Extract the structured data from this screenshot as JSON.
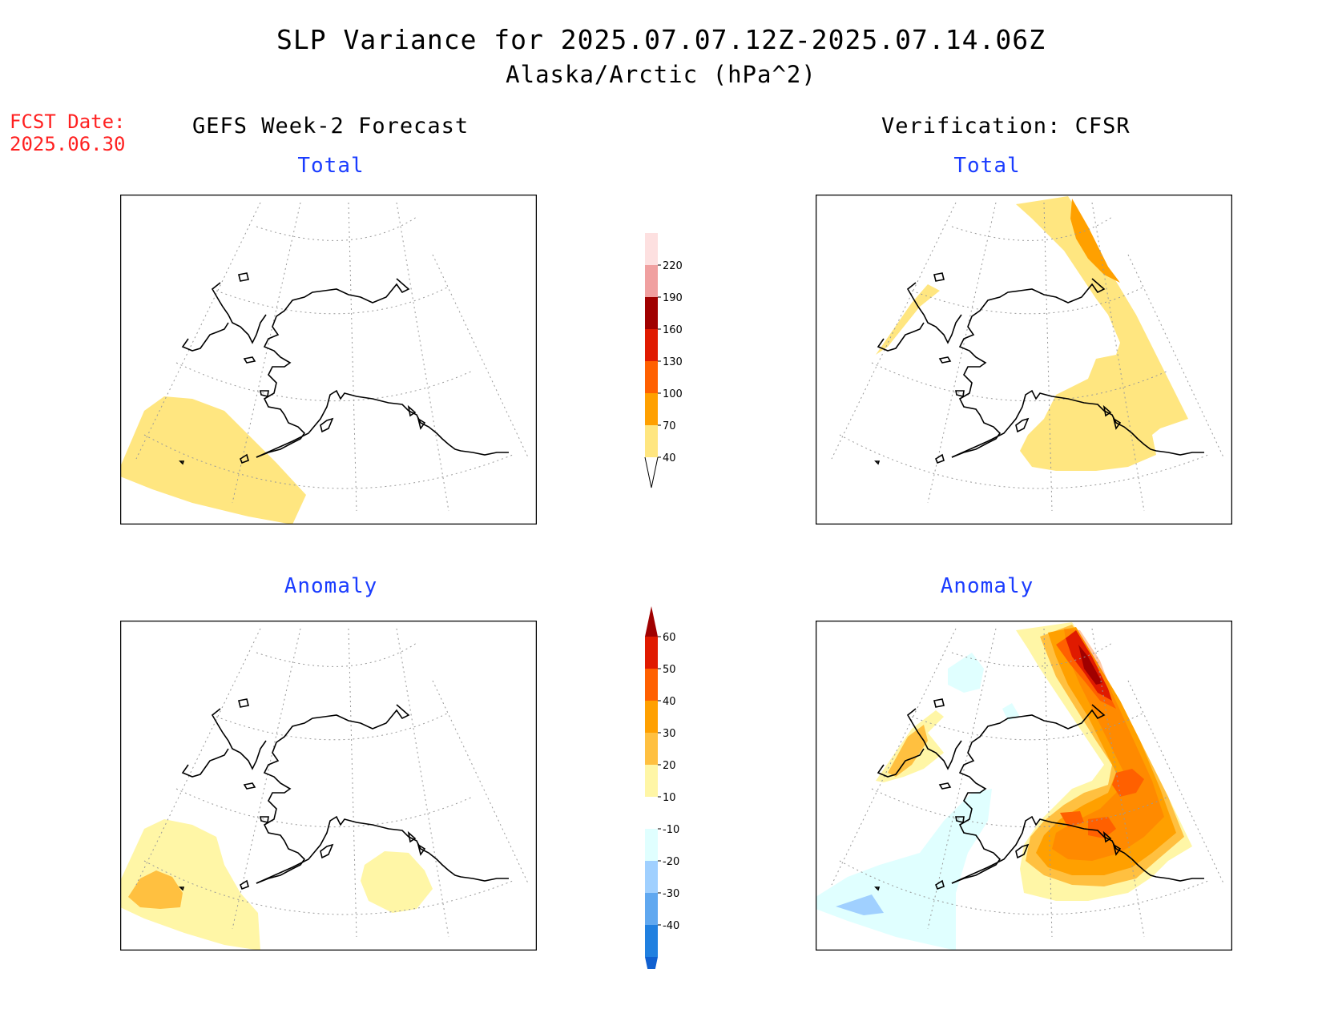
{
  "header": {
    "title": "SLP Variance for 2025.07.07.12Z-2025.07.14.06Z",
    "subtitle": "Alaska/Arctic (hPa^2)",
    "fcst_label": "FCST Date:",
    "fcst_date": "2025.06.30"
  },
  "columns": {
    "left": "GEFS Week-2 Forecast",
    "right": "Verification: CFSR"
  },
  "panels": {
    "gefs_total": "Total",
    "cfsr_total": "Total",
    "gefs_anomaly": "Anomaly",
    "cfsr_anomaly": "Anomaly"
  },
  "colorbars": {
    "total": {
      "levels": [
        "40",
        "70",
        "100",
        "130",
        "160",
        "190",
        "220"
      ],
      "colors": [
        "#ffe680",
        "#ffa000",
        "#ff6000",
        "#e01a00",
        "#a00000",
        "#f0a0a0",
        "#fde0e0"
      ]
    },
    "anomaly": {
      "levels": [
        "60",
        "50",
        "40",
        "30",
        "20",
        "10",
        "-10",
        "-20",
        "-30",
        "-40"
      ],
      "colors": [
        "#a00000",
        "#e01a00",
        "#ff6000",
        "#ffa000",
        "#ffc040",
        "#fff6a6",
        "#ffffff",
        "#e0ffff",
        "#a0d0ff",
        "#60a8f0",
        "#2080e0",
        "#1060d0"
      ]
    }
  }
}
